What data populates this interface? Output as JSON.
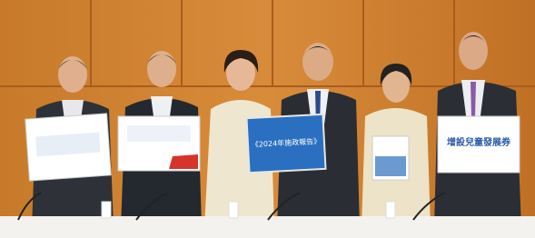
{
  "signs": [
    {
      "text": "《2024年施政報告》"
    },
    {
      "text": "增設兒童發展券"
    }
  ]
}
